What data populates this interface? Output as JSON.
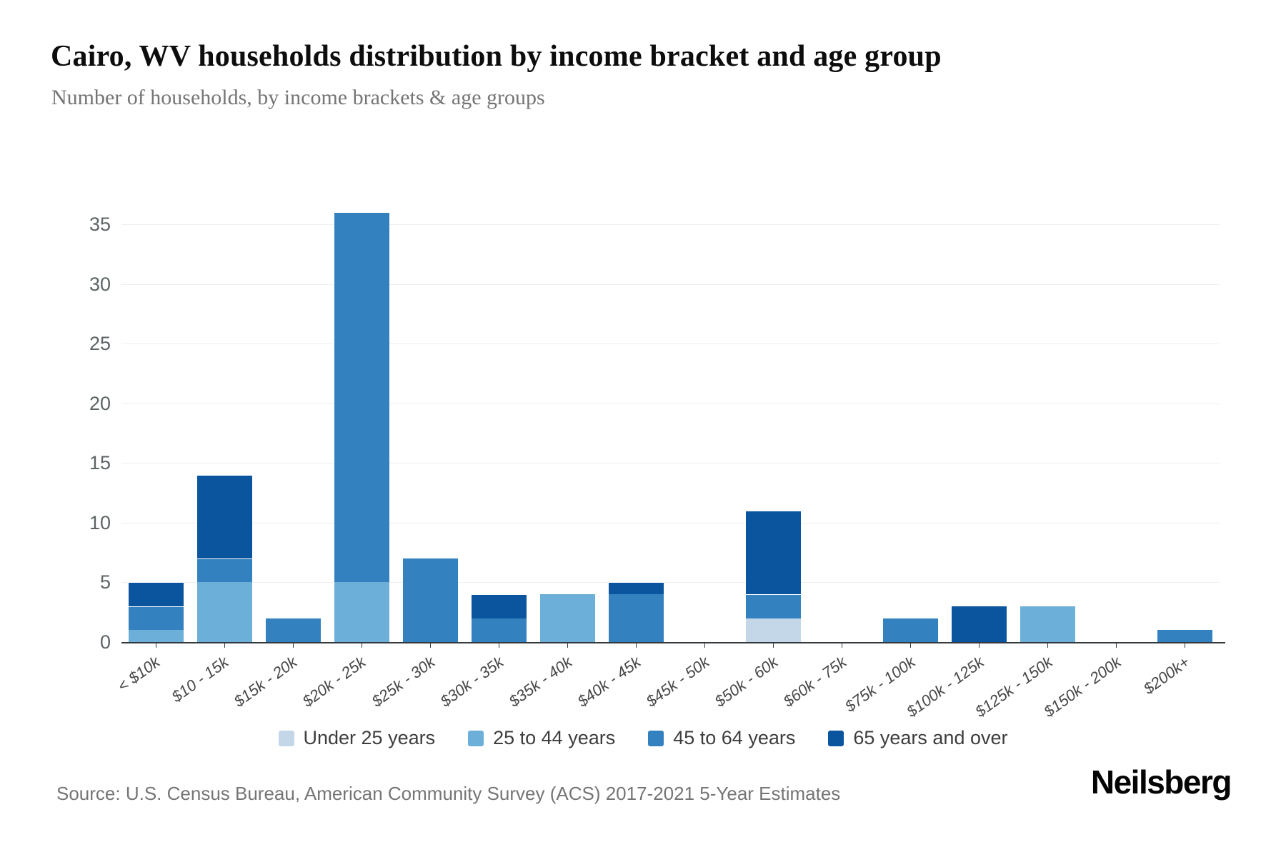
{
  "header": {
    "title": "Cairo, WV households distribution by income bracket and age group",
    "subtitle": "Number of households, by income brackets & age groups"
  },
  "chart_data": {
    "type": "bar",
    "stacked": true,
    "title": "Cairo, WV households distribution by income bracket and age group",
    "subtitle": "Number of households, by income brackets & age groups",
    "xlabel": "",
    "ylabel": "",
    "ylim": [
      0,
      38
    ],
    "yticks": [
      0,
      5,
      10,
      15,
      20,
      25,
      30,
      35
    ],
    "grid": true,
    "legend_position": "bottom",
    "categories": [
      "< $10k",
      "$10 - 15k",
      "$15k - 20k",
      "$20k - 25k",
      "$25k - 30k",
      "$30k - 35k",
      "$35k - 40k",
      "$40k - 45k",
      "$45k - 50k",
      "$50k - 60k",
      "$60k - 75k",
      "$75k - 100k",
      "$100k - 125k",
      "$125k - 150k",
      "$150k - 200k",
      "$200k+"
    ],
    "series": [
      {
        "name": "Under 25 years",
        "color": "#c3d7e8",
        "values": [
          0,
          0,
          0,
          0,
          0,
          0,
          0,
          0,
          0,
          2,
          0,
          0,
          0,
          0,
          0,
          0
        ]
      },
      {
        "name": "25 to 44 years",
        "color": "#6cafd8",
        "values": [
          1,
          5,
          0,
          5,
          0,
          0,
          4,
          0,
          0,
          0,
          0,
          0,
          0,
          3,
          0,
          0
        ]
      },
      {
        "name": "45 to 64 years",
        "color": "#3382bf",
        "values": [
          2,
          2,
          2,
          31,
          7,
          2,
          0,
          4,
          0,
          2,
          0,
          2,
          0,
          0,
          0,
          1
        ]
      },
      {
        "name": "65 years and over",
        "color": "#0b559f",
        "values": [
          2,
          7,
          0,
          0,
          0,
          2,
          0,
          1,
          0,
          7,
          0,
          0,
          3,
          0,
          0,
          0
        ]
      }
    ],
    "totals": [
      5,
      14,
      2,
      36,
      7,
      4,
      4,
      5,
      0,
      11,
      0,
      2,
      3,
      3,
      0,
      1
    ]
  },
  "footer": {
    "source": "Source: U.S. Census Bureau, American Community Survey (ACS) 2017-2021 5-Year Estimates",
    "logo": "Neilsberg"
  }
}
